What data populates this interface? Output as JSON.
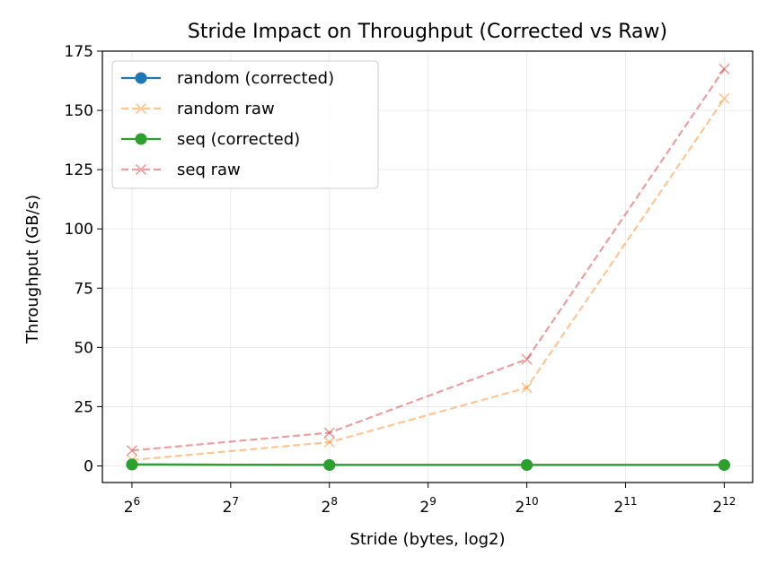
{
  "chart_data": {
    "type": "line",
    "title": "Stride Impact on Throughput (Corrected vs Raw)",
    "xlabel": "Stride (bytes, log2)",
    "ylabel": "Throughput (GB/s)",
    "x_scale": "log2",
    "x": [
      64,
      256,
      1024,
      4096
    ],
    "x_ticks": [
      {
        "base": "2",
        "exp": "6",
        "value": 64
      },
      {
        "base": "2",
        "exp": "7",
        "value": 128
      },
      {
        "base": "2",
        "exp": "8",
        "value": 256
      },
      {
        "base": "2",
        "exp": "9",
        "value": 512
      },
      {
        "base": "2",
        "exp": "10",
        "value": 1024
      },
      {
        "base": "2",
        "exp": "11",
        "value": 2048
      },
      {
        "base": "2",
        "exp": "12",
        "value": 4096
      }
    ],
    "xlim": [
      52,
      5000
    ],
    "ylim": [
      -7,
      175
    ],
    "y_ticks": [
      "0",
      "25",
      "50",
      "75",
      "100",
      "125",
      "150",
      "175"
    ],
    "grid": true,
    "legend_position": "top-left",
    "series": [
      {
        "name": "random (corrected)",
        "values": [
          0.6,
          0.4,
          0.4,
          0.4
        ],
        "color": "#1f77b4",
        "style": "solid",
        "marker": "circle",
        "alpha": 1
      },
      {
        "name": "random raw",
        "values": [
          2.5,
          10,
          33,
          155
        ],
        "color": "#ff7f0e",
        "style": "dashed",
        "marker": "x",
        "alpha": 0.45
      },
      {
        "name": "seq (corrected)",
        "values": [
          0.6,
          0.4,
          0.4,
          0.4
        ],
        "color": "#2ca02c",
        "style": "solid",
        "marker": "circle",
        "alpha": 1
      },
      {
        "name": "seq raw",
        "values": [
          6.5,
          14,
          45,
          167.5
        ],
        "color": "#d62728",
        "style": "dashed",
        "marker": "x",
        "alpha": 0.45
      }
    ]
  }
}
